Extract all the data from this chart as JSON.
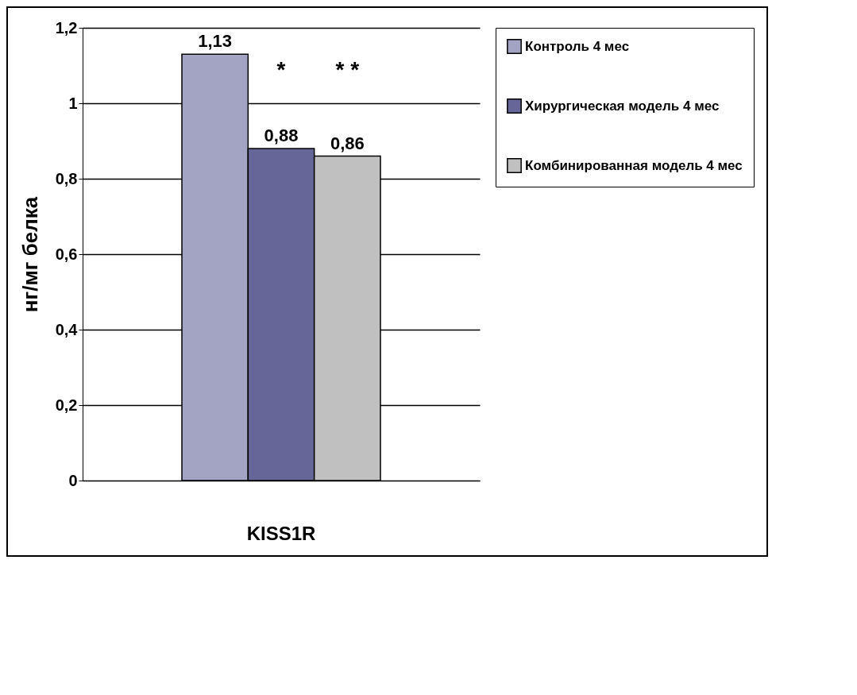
{
  "chart_data": {
    "type": "bar",
    "ylabel": "нг/мг белка",
    "categories": [
      "KISS1R"
    ],
    "series": [
      {
        "name": "Контроль 4 мес",
        "color": "#a3a3c4",
        "values": [
          1.13
        ],
        "value_labels": [
          "1,13"
        ]
      },
      {
        "name": "Хирургическая модель 4 мес",
        "color": "#666699",
        "values": [
          0.88
        ],
        "value_labels": [
          "0,88"
        ]
      },
      {
        "name": "Комбинированная модель 4 мес",
        "color": "#c0c0c0",
        "values": [
          0.86
        ],
        "value_labels": [
          "0,86"
        ]
      }
    ],
    "ylim": [
      0,
      1.2
    ],
    "yticks": [
      {
        "value": 0,
        "label": "0"
      },
      {
        "value": 0.2,
        "label": "0,2"
      },
      {
        "value": 0.4,
        "label": "0,4"
      },
      {
        "value": 0.6,
        "label": "0,6"
      },
      {
        "value": 0.8,
        "label": "0,8"
      },
      {
        "value": 1,
        "label": "1"
      },
      {
        "value": 1.2,
        "label": "1,2"
      }
    ],
    "grid": "y",
    "legend": "right",
    "annotations": [
      "*",
      "* *"
    ]
  }
}
